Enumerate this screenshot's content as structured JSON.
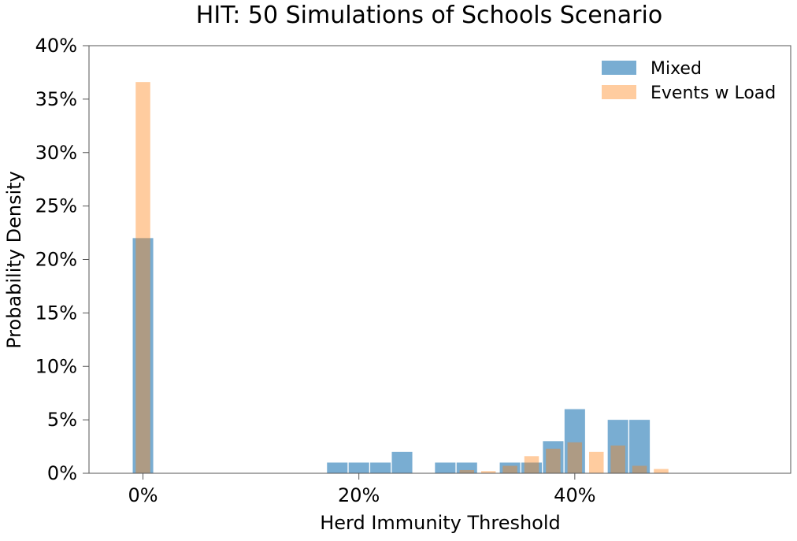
{
  "chart_data": {
    "type": "bar",
    "title": "HIT: 50 Simulations of Schools Scenario",
    "xlabel": "Herd Immunity Threshold",
    "ylabel": "Probability Density",
    "xlim": [
      -0.05,
      0.6
    ],
    "ylim": [
      0,
      0.4
    ],
    "xticks": [
      0,
      0.2,
      0.4
    ],
    "xtick_labels": [
      "0%",
      "20%",
      "40%"
    ],
    "yticks": [
      0,
      0.05,
      0.1,
      0.15,
      0.2,
      0.25,
      0.3,
      0.35,
      0.4
    ],
    "ytick_labels": [
      "0%",
      "5%",
      "10%",
      "15%",
      "20%",
      "25%",
      "30%",
      "35%",
      "40%"
    ],
    "grid": false,
    "legend_position": "top-right",
    "series": [
      {
        "name": "Mixed",
        "color": "#1f77b4",
        "opacity": 0.6,
        "bar_width": 0.019,
        "x": [
          0.0,
          0.18,
          0.2,
          0.22,
          0.24,
          0.28,
          0.3,
          0.34,
          0.36,
          0.38,
          0.4,
          0.44,
          0.46
        ],
        "values": [
          0.22,
          0.01,
          0.01,
          0.01,
          0.02,
          0.01,
          0.01,
          0.01,
          0.01,
          0.03,
          0.06,
          0.05,
          0.05
        ]
      },
      {
        "name": "Events w Load",
        "color": "#ff7f0e",
        "opacity": 0.4,
        "bar_width": 0.0135,
        "x": [
          0.0,
          0.3,
          0.32,
          0.34,
          0.36,
          0.38,
          0.4,
          0.42,
          0.44,
          0.46,
          0.48
        ],
        "values": [
          0.366,
          0.003,
          0.002,
          0.007,
          0.016,
          0.023,
          0.029,
          0.02,
          0.026,
          0.007,
          0.004
        ]
      }
    ]
  }
}
